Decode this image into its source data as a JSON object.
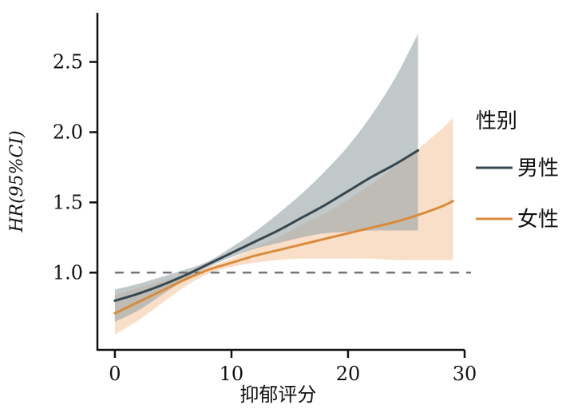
{
  "chart_data": {
    "type": "line",
    "title": "",
    "xlabel": "抑郁评分",
    "ylabel": "HR(95%CI)",
    "xlim": [
      -1.5,
      30
    ],
    "ylim": [
      0.45,
      2.85
    ],
    "xticks": [
      0,
      10,
      20,
      30
    ],
    "xtick_labels": [
      "0",
      "10",
      "20",
      "30"
    ],
    "yticks": [
      1.0,
      1.5,
      2.0,
      2.5
    ],
    "ytick_labels": [
      "1.0",
      "1.5",
      "2.0",
      "2.5"
    ],
    "reference_line": 1.0,
    "grid": false,
    "legend": {
      "title": "性别",
      "position": "right",
      "entries": [
        "男性",
        "女性"
      ]
    },
    "series": [
      {
        "name": "男性",
        "color": "#37474f",
        "band_color": "#9aa6aa",
        "x": [
          0,
          2,
          4,
          6,
          8,
          10,
          12,
          14,
          16,
          18,
          20,
          22,
          24,
          26
        ],
        "y": [
          0.8,
          0.85,
          0.91,
          0.98,
          1.06,
          1.14,
          1.22,
          1.3,
          1.39,
          1.48,
          1.58,
          1.68,
          1.77,
          1.87
        ],
        "lower": [
          0.65,
          0.73,
          0.84,
          0.95,
          1.04,
          1.11,
          1.17,
          1.21,
          1.25,
          1.28,
          1.29,
          1.3,
          1.3,
          1.3
        ],
        "upper": [
          0.88,
          0.92,
          0.97,
          1.02,
          1.08,
          1.18,
          1.29,
          1.42,
          1.56,
          1.72,
          1.9,
          2.12,
          2.38,
          2.7
        ]
      },
      {
        "name": "女性",
        "color": "#d98b3a",
        "band_color": "#f6c9a4",
        "x": [
          0,
          2,
          4,
          6,
          8,
          10,
          12,
          14,
          16,
          18,
          20,
          22,
          24,
          26,
          28,
          29
        ],
        "y": [
          0.71,
          0.79,
          0.87,
          0.95,
          1.02,
          1.07,
          1.12,
          1.16,
          1.2,
          1.24,
          1.28,
          1.32,
          1.36,
          1.41,
          1.47,
          1.51
        ],
        "lower": [
          0.56,
          0.66,
          0.78,
          0.9,
          0.99,
          1.04,
          1.07,
          1.09,
          1.1,
          1.1,
          1.1,
          1.1,
          1.09,
          1.09,
          1.09,
          1.09
        ],
        "upper": [
          0.84,
          0.89,
          0.94,
          0.99,
          1.04,
          1.1,
          1.18,
          1.25,
          1.34,
          1.42,
          1.52,
          1.63,
          1.75,
          1.88,
          2.02,
          2.1
        ]
      }
    ]
  }
}
